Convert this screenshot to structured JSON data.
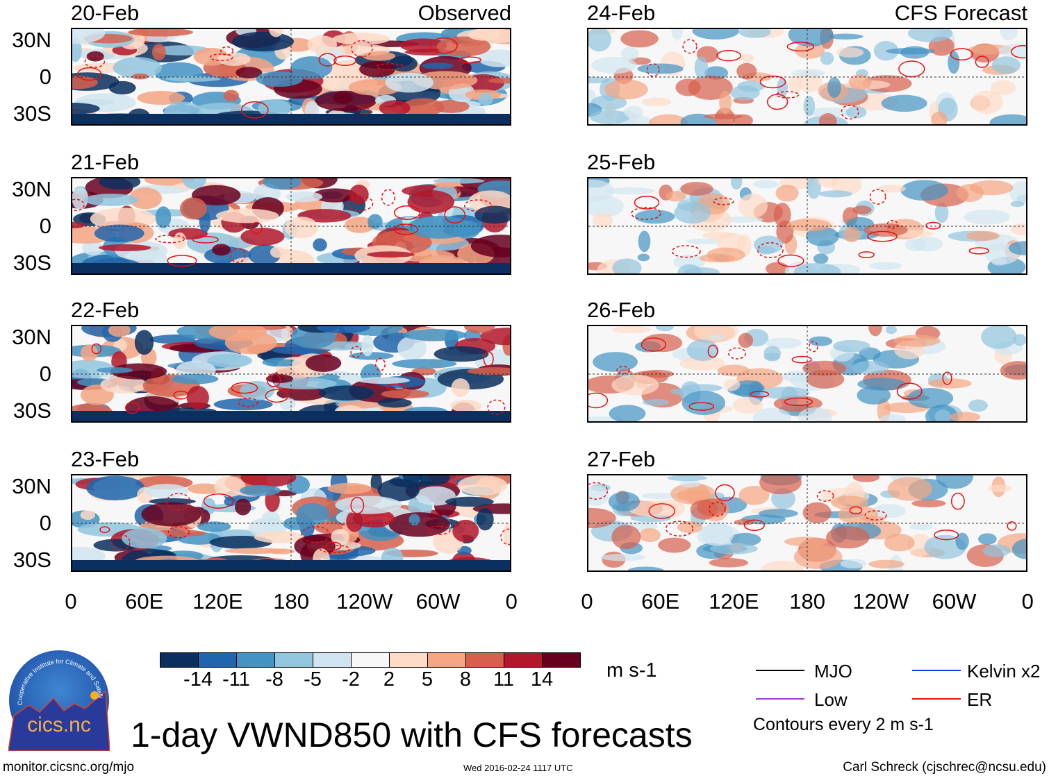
{
  "header": {
    "left_label": "Observed",
    "right_label": "CFS Forecast"
  },
  "panels_observed": [
    "20-Feb",
    "21-Feb",
    "22-Feb",
    "23-Feb"
  ],
  "panels_forecast": [
    "24-Feb",
    "25-Feb",
    "26-Feb",
    "27-Feb"
  ],
  "chart_data": {
    "type": "heatmap",
    "title": "1-day VWND850 with CFS forecasts",
    "variable": "850-hPa meridional wind",
    "units": "m s-1",
    "y_ticks": [
      "30N",
      "0",
      "30S"
    ],
    "x_ticks": [
      "0",
      "60E",
      "120E",
      "180",
      "120W",
      "60W",
      "0"
    ],
    "color_levels": [
      "-14",
      "-11",
      "-8",
      "-5",
      "-2",
      "2",
      "5",
      "8",
      "11",
      "14"
    ],
    "colors": [
      "#0b2f5e",
      "#2166ac",
      "#4393c3",
      "#92c5de",
      "#d1e5f0",
      "#f7f7f7",
      "#fddbc7",
      "#f4a582",
      "#d6604d",
      "#b2182b",
      "#67001f"
    ],
    "contour_interval": "Contours every 2 m s-1",
    "legend": [
      {
        "label": "MJO",
        "color": "#000000"
      },
      {
        "label": "Kelvin x2",
        "color": "#1a3ee6"
      },
      {
        "label": "Low",
        "color": "#9a3ce0"
      },
      {
        "label": "ER",
        "color": "#e61010"
      }
    ]
  },
  "logo": {
    "text": "cics.nc",
    "ring_text": "Cooperative Institute for Climate and Satellites"
  },
  "footer": {
    "url": "monitor.cicsnc.org/mjo",
    "timestamp": "Wed 2016-02-24 1117 UTC",
    "credit": "Carl Schreck (cjschrec@ncsu.edu)"
  }
}
